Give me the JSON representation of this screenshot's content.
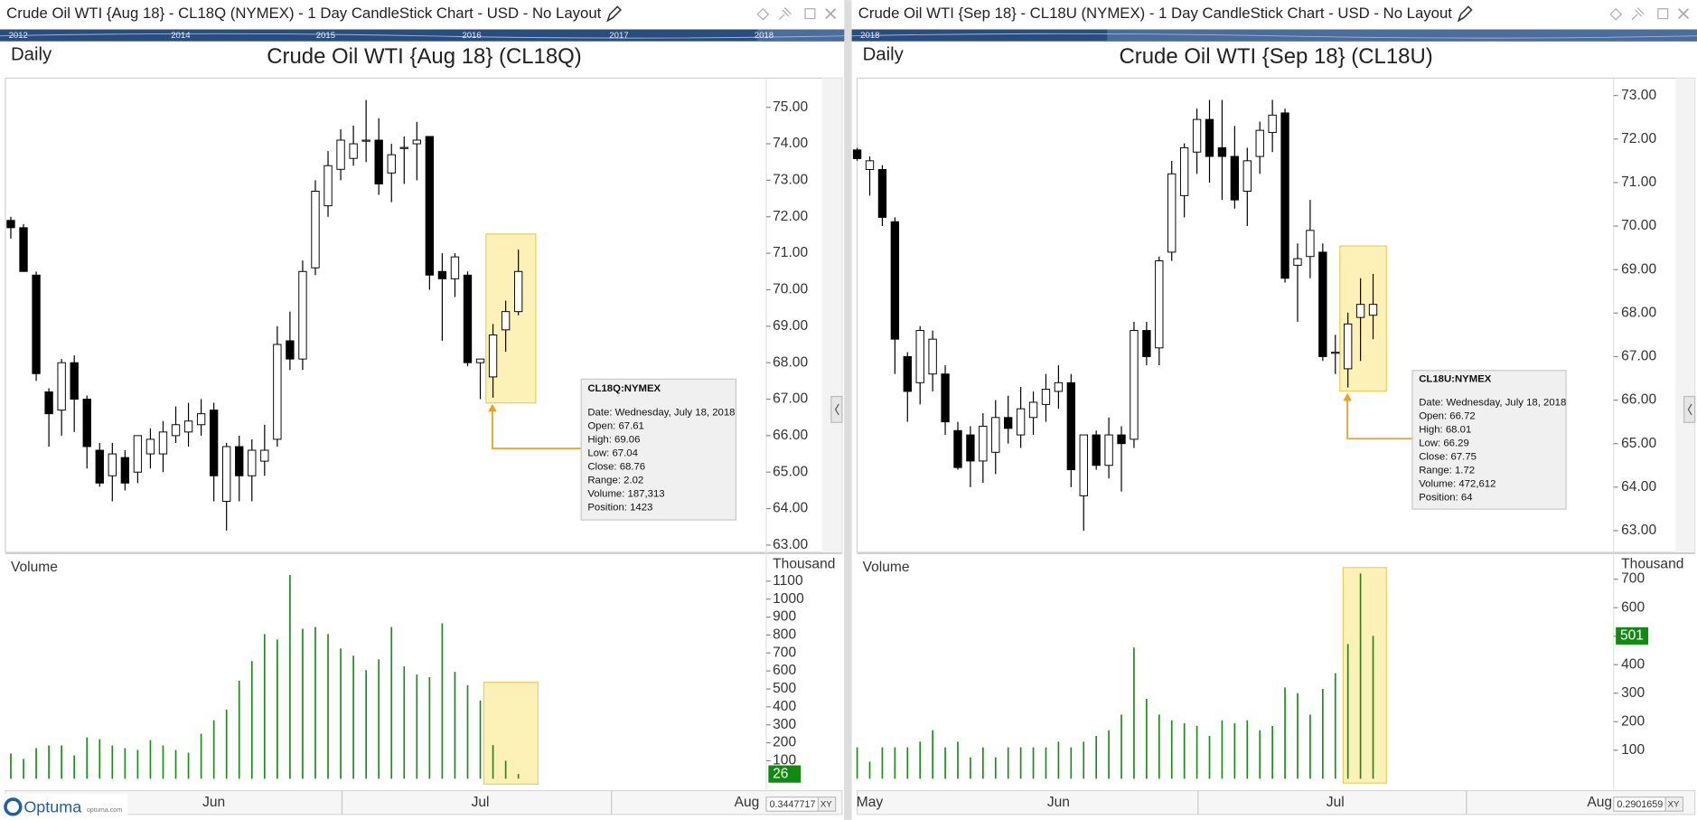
{
  "windows": [
    {
      "title": "Crude Oil WTI {Aug 18} - CL18Q (NYMEX) - 1 Day CandleStick Chart - USD - No Layout",
      "timeline": [
        "2012",
        "2014",
        "2015",
        "2016",
        "2017",
        "2018"
      ],
      "scale": "0.3447717",
      "xy": "XY"
    },
    {
      "title": "Crude Oil WTI {Sep 18} - CL18U (NYMEX) - 1 Day CandleStick Chart - USD - No Layout",
      "timeline": [
        "2018"
      ],
      "scale": "0.2901659",
      "xy": "XY"
    }
  ],
  "logo": {
    "name": "Optuma",
    "url": "optuma.com"
  },
  "chart_data": [
    {
      "type": "candlestick",
      "period": "Daily",
      "title": "Crude Oil WTI {Aug 18} (CL18Q)",
      "up_color": "#ffffff",
      "down_color": "#000000",
      "categories": [
        null,
        null,
        null,
        null,
        null,
        null,
        null,
        null,
        null,
        null,
        null,
        null,
        null,
        null,
        null,
        null,
        "Jun",
        null,
        null,
        null,
        null,
        null,
        null,
        null,
        null,
        null,
        null,
        null,
        null,
        null,
        null,
        null,
        null,
        null,
        null,
        null,
        null,
        "Jul",
        null,
        null,
        null,
        null,
        null,
        null,
        null,
        null,
        null,
        null,
        null,
        null,
        null,
        null,
        null,
        null,
        null,
        null,
        null,
        null,
        "Aug"
      ],
      "open": [
        71.9,
        71.7,
        70.4,
        67.2,
        66.7,
        68.0,
        67.0,
        65.6,
        64.9,
        65.4,
        65.0,
        65.5,
        65.5,
        66.0,
        66.1,
        66.3,
        66.7,
        64.2,
        65.7,
        64.9,
        65.3,
        65.9,
        68.6,
        68.1,
        70.6,
        72.3,
        73.3,
        73.6,
        74.1,
        74.1,
        73.2,
        73.9,
        74.0,
        74.2,
        70.5,
        70.3,
        70.4,
        68.0,
        67.61,
        68.9,
        69.4,
        null,
        null,
        null,
        null,
        null,
        null,
        null,
        null,
        null,
        null,
        null,
        null,
        null,
        null,
        null,
        null,
        null,
        null
      ],
      "high": [
        72.0,
        71.8,
        70.5,
        67.3,
        68.1,
        68.2,
        67.1,
        65.8,
        65.8,
        65.6,
        66.0,
        66.2,
        66.4,
        66.8,
        66.9,
        67.0,
        66.9,
        65.8,
        66.0,
        65.9,
        66.3,
        69.0,
        69.4,
        70.8,
        73.0,
        73.8,
        74.4,
        74.5,
        75.2,
        74.7,
        74.0,
        74.2,
        74.6,
        74.2,
        71.0,
        71.0,
        70.5,
        68.1,
        69.06,
        69.7,
        71.1,
        null,
        null,
        null,
        null,
        null,
        null,
        null,
        null,
        null,
        null,
        null,
        null,
        null,
        null,
        null,
        null,
        null,
        null
      ],
      "low": [
        71.4,
        70.5,
        67.5,
        65.7,
        66.0,
        66.1,
        65.1,
        64.6,
        64.2,
        64.5,
        64.7,
        65.1,
        65.0,
        65.8,
        65.7,
        66.0,
        64.2,
        63.4,
        64.2,
        64.2,
        64.9,
        65.7,
        67.8,
        67.8,
        70.4,
        72.0,
        73.0,
        73.4,
        73.5,
        72.6,
        72.4,
        72.9,
        73.0,
        70.0,
        68.6,
        69.8,
        67.9,
        67.0,
        67.04,
        68.3,
        69.3,
        null,
        null,
        null,
        null,
        null,
        null,
        null,
        null,
        null,
        null,
        null,
        null,
        null,
        null,
        null,
        null,
        null,
        null
      ],
      "close": [
        71.7,
        70.5,
        67.7,
        66.6,
        68.0,
        67.0,
        65.7,
        64.7,
        65.5,
        64.7,
        66.0,
        65.9,
        66.1,
        66.3,
        66.4,
        66.6,
        64.9,
        65.7,
        64.9,
        65.6,
        65.6,
        68.5,
        68.1,
        70.5,
        72.7,
        73.4,
        74.1,
        74.0,
        74.1,
        72.9,
        73.7,
        73.9,
        74.1,
        70.4,
        70.3,
        70.9,
        68.0,
        68.1,
        68.76,
        69.4,
        70.5,
        null,
        null,
        null,
        null,
        null,
        null,
        null,
        null,
        null,
        null,
        null,
        null,
        null,
        null,
        null,
        null,
        null,
        null
      ],
      "ylim": [
        62.8,
        75.8
      ],
      "yticks": [
        {
          "value": 63,
          "label": "63.00"
        },
        {
          "value": 64,
          "label": "64.00"
        },
        {
          "value": 65,
          "label": "65.00"
        },
        {
          "value": 66,
          "label": "66.00"
        },
        {
          "value": 67,
          "label": "67.00"
        },
        {
          "value": 68,
          "label": "68.00"
        },
        {
          "value": 69,
          "label": "69.00"
        },
        {
          "value": 70,
          "label": "70.00"
        },
        {
          "value": 71,
          "label": "71.00"
        },
        {
          "value": 72,
          "label": "72.00"
        },
        {
          "value": 73,
          "label": "73.00"
        },
        {
          "value": 74,
          "label": "74.00"
        },
        {
          "value": 75,
          "label": "75.00"
        }
      ],
      "tooltip": {
        "title": "CL18Q:NYMEX",
        "lines": [
          "Date: Wednesday, July 18, 2018",
          "Open: 67.61",
          "High: 69.06",
          "Low: 67.04",
          "Close: 68.76",
          "Range: 2.02",
          "Volume: 187,313",
          "Position: 1423"
        ]
      },
      "volume": {
        "type": "bar",
        "title": "Volume",
        "unit": "Thousand",
        "color": "#1a8c1a",
        "values": [
          140,
          110,
          170,
          185,
          185,
          130,
          230,
          220,
          185,
          170,
          160,
          215,
          185,
          160,
          145,
          250,
          325,
          385,
          545,
          655,
          805,
          775,
          1135,
          835,
          845,
          805,
          725,
          685,
          605,
          665,
          845,
          625,
          580,
          565,
          865,
          595,
          520,
          435,
          187.313,
          100,
          26,
          null,
          null,
          null,
          null,
          null,
          null,
          null,
          null,
          null,
          null,
          null,
          null,
          null,
          null,
          null,
          null,
          null,
          null
        ],
        "ylim": [
          0,
          1230
        ],
        "yticks": [
          100,
          200,
          300,
          400,
          500,
          600,
          700,
          800,
          900,
          1000,
          1100
        ]
      }
    },
    {
      "type": "candlestick",
      "period": "Daily",
      "title": "Crude Oil WTI {Sep 18} (CL18U)",
      "up_color": "#ffffff",
      "down_color": "#000000",
      "categories": [
        null,
        "May",
        null,
        null,
        null,
        null,
        null,
        null,
        null,
        null,
        null,
        null,
        null,
        null,
        null,
        null,
        "Jun",
        null,
        null,
        null,
        null,
        null,
        null,
        null,
        null,
        null,
        null,
        null,
        null,
        null,
        null,
        null,
        null,
        null,
        null,
        null,
        null,
        null,
        "Jul",
        null,
        null,
        null,
        null,
        null,
        null,
        null,
        null,
        null,
        null,
        null,
        null,
        null,
        null,
        null,
        null,
        null,
        null,
        null,
        null,
        "Aug"
      ],
      "open": [
        71.75,
        71.3,
        71.3,
        70.1,
        67.0,
        66.4,
        66.6,
        66.6,
        65.3,
        65.2,
        64.6,
        64.8,
        65.6,
        65.2,
        65.6,
        65.9,
        66.2,
        66.4,
        63.8,
        65.2,
        64.5,
        65.2,
        65.1,
        67.6,
        67.2,
        69.4,
        70.7,
        71.7,
        72.45,
        71.8,
        71.6,
        70.8,
        71.6,
        72.15,
        72.6,
        69.1,
        69.3,
        69.4,
        67.1,
        66.72,
        67.9,
        67.95,
        null,
        null,
        null,
        null,
        null,
        null,
        null,
        null,
        null,
        null,
        null,
        null,
        null,
        null,
        null,
        null,
        null,
        null
      ],
      "high": [
        71.8,
        71.6,
        71.4,
        70.2,
        67.1,
        67.7,
        67.6,
        66.8,
        65.5,
        65.4,
        65.7,
        66.0,
        66.1,
        66.3,
        66.2,
        66.6,
        66.8,
        66.6,
        65.2,
        65.3,
        65.6,
        65.4,
        67.8,
        67.8,
        69.3,
        71.5,
        71.9,
        72.7,
        72.9,
        72.9,
        72.3,
        71.8,
        72.4,
        72.9,
        72.7,
        69.6,
        70.6,
        69.6,
        67.5,
        68.01,
        68.8,
        68.9,
        null,
        null,
        null,
        null,
        null,
        null,
        null,
        null,
        null,
        null,
        null,
        null,
        null,
        null,
        null,
        null,
        null,
        null
      ],
      "low": [
        71.5,
        70.7,
        70.0,
        66.6,
        65.5,
        65.9,
        66.2,
        65.2,
        64.4,
        64.0,
        64.1,
        64.3,
        65.0,
        64.9,
        65.2,
        65.5,
        65.8,
        64.0,
        63.0,
        64.4,
        64.2,
        63.9,
        64.9,
        66.8,
        66.8,
        69.2,
        70.2,
        71.2,
        71.0,
        70.6,
        70.4,
        70.0,
        71.2,
        71.7,
        68.7,
        67.8,
        68.8,
        66.9,
        66.6,
        66.29,
        66.9,
        67.4,
        null,
        null,
        null,
        null,
        null,
        null,
        null,
        null,
        null,
        null,
        null,
        null,
        null,
        null,
        null,
        null,
        null,
        null
      ],
      "close": [
        71.55,
        71.5,
        70.2,
        67.4,
        66.2,
        67.6,
        67.4,
        65.5,
        64.45,
        64.6,
        65.4,
        65.6,
        65.35,
        65.8,
        65.95,
        66.25,
        66.4,
        64.4,
        65.2,
        64.5,
        65.2,
        65.0,
        67.6,
        67.0,
        69.2,
        71.2,
        71.8,
        72.45,
        71.6,
        71.6,
        70.6,
        71.5,
        72.2,
        72.55,
        68.8,
        69.25,
        69.9,
        67.0,
        67.1,
        67.75,
        68.2,
        68.2,
        null,
        null,
        null,
        null,
        null,
        null,
        null,
        null,
        null,
        null,
        null,
        null,
        null,
        null,
        null,
        null,
        null,
        null
      ],
      "ylim": [
        62.5,
        73.4
      ],
      "yticks": [
        {
          "value": 63,
          "label": "63.00"
        },
        {
          "value": 64,
          "label": "64.00"
        },
        {
          "value": 65,
          "label": "65.00"
        },
        {
          "value": 66,
          "label": "66.00"
        },
        {
          "value": 67,
          "label": "67.00"
        },
        {
          "value": 68,
          "label": "68.00"
        },
        {
          "value": 69,
          "label": "69.00"
        },
        {
          "value": 70,
          "label": "70.00"
        },
        {
          "value": 71,
          "label": "71.00"
        },
        {
          "value": 72,
          "label": "72.00"
        },
        {
          "value": 73,
          "label": "73.00"
        }
      ],
      "tooltip": {
        "title": "CL18U:NYMEX",
        "lines": [
          "Date: Wednesday, July 18, 2018",
          "Open: 66.72",
          "High: 68.01",
          "Low: 66.29",
          "Close: 67.75",
          "Range: 1.72",
          "Volume: 472,612",
          "Position: 64"
        ]
      },
      "volume": {
        "type": "bar",
        "title": "Volume",
        "unit": "Thousand",
        "color": "#1a8c1a",
        "values": [
          110,
          60,
          110,
          110,
          110,
          130,
          170,
          110,
          130,
          75,
          110,
          75,
          110,
          110,
          110,
          110,
          130,
          110,
          130,
          150,
          170,
          225,
          460,
          280,
          225,
          205,
          195,
          185,
          150,
          205,
          195,
          205,
          170,
          185,
          320,
          300,
          225,
          315,
          370,
          472.612,
          720,
          501,
          null,
          null,
          null,
          null,
          null,
          null,
          null,
          null,
          null,
          null,
          null,
          null,
          null,
          null,
          null,
          null,
          null,
          null
        ],
        "ylim": [
          0,
          775
        ],
        "yticks": [
          100,
          200,
          300,
          400,
          500,
          600,
          700
        ]
      }
    }
  ]
}
